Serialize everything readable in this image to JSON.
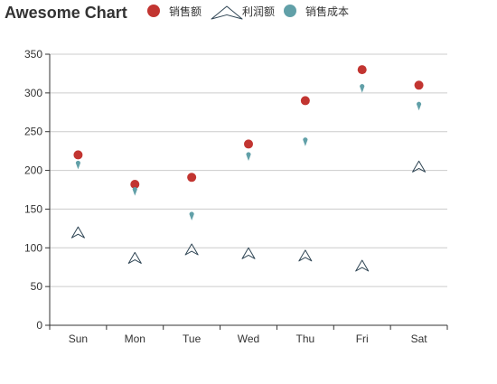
{
  "chart_data": {
    "type": "scatter",
    "title": "Awesome Chart",
    "categories": [
      "Sun",
      "Mon",
      "Tue",
      "Wed",
      "Thu",
      "Fri",
      "Sat"
    ],
    "ylim": [
      0,
      350
    ],
    "yticks": [
      0,
      50,
      100,
      150,
      200,
      250,
      300,
      350
    ],
    "grid": true,
    "legend": "top",
    "series": [
      {
        "name": "销售额",
        "symbol": "circle",
        "color": "#c23531",
        "values": [
          220,
          182,
          191,
          234,
          290,
          330,
          310
        ]
      },
      {
        "name": "利润额",
        "symbol": "triangle-outline",
        "color": "#2f4554",
        "values": [
          120,
          87,
          98,
          93,
          90,
          77,
          205
        ]
      },
      {
        "name": "销售成本",
        "symbol": "pin",
        "color": "#61a0a8",
        "values": [
          206,
          172,
          140,
          217,
          236,
          305,
          282
        ]
      }
    ]
  }
}
